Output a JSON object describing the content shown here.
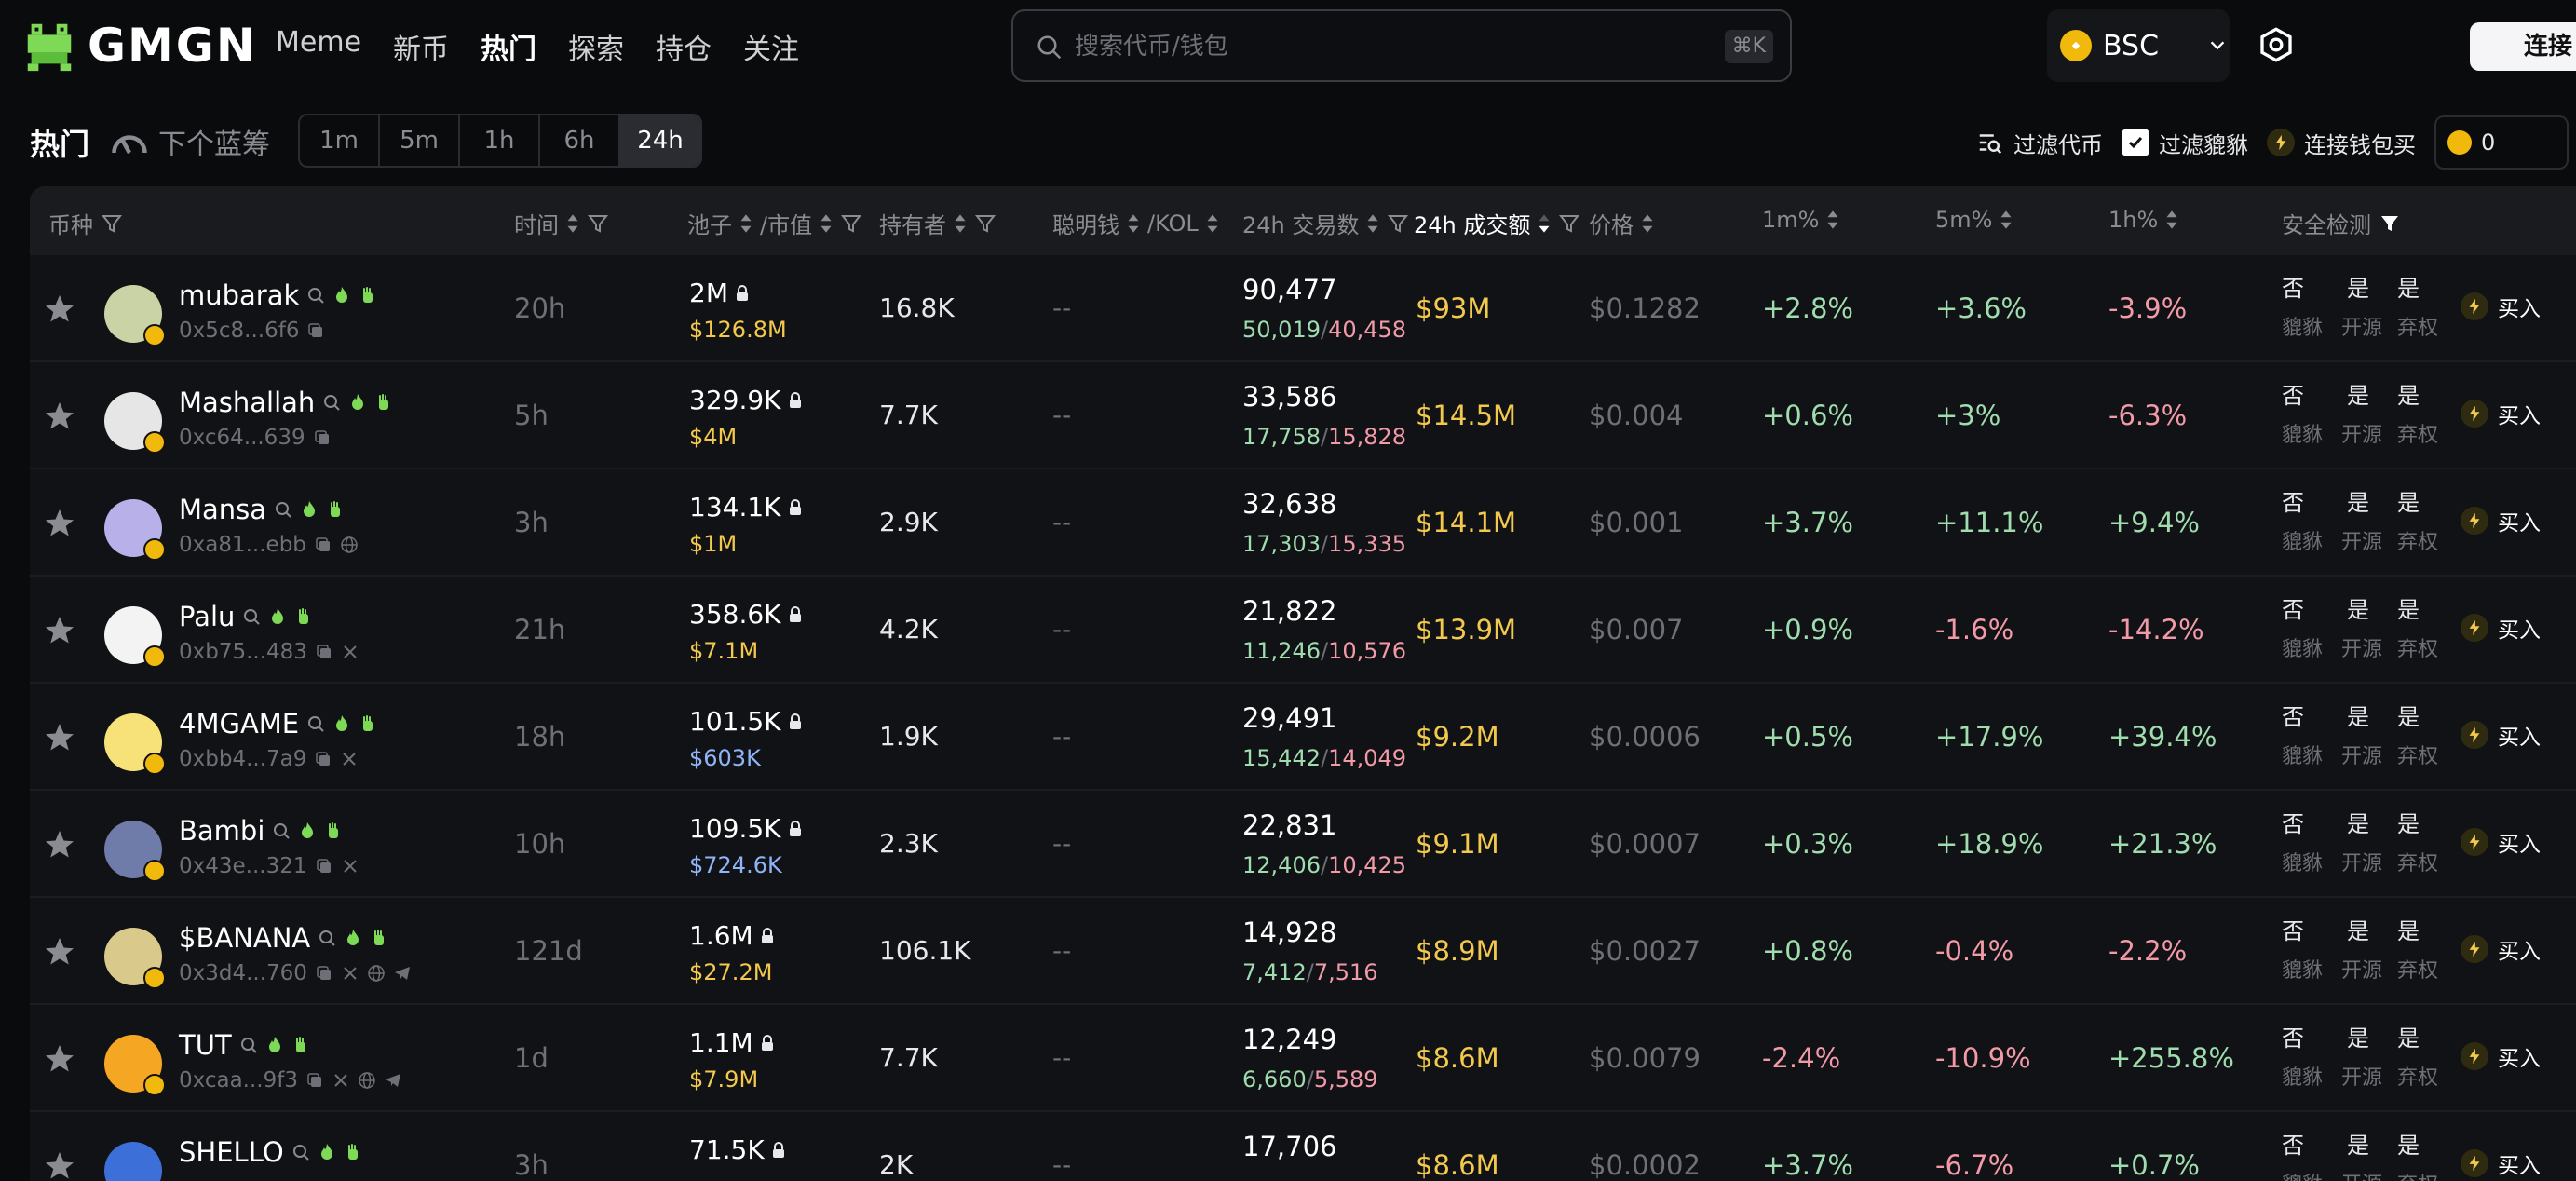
{
  "brand": {
    "name": "GMGN"
  },
  "nav": [
    "Meme",
    "新币",
    "热门",
    "探索",
    "持仓",
    "关注"
  ],
  "search": {
    "placeholder": "搜索代币/钱包",
    "shortcut": "⌘K"
  },
  "chain": {
    "label": "BSC"
  },
  "connect_label": "连接",
  "toolbar": {
    "title": "热门",
    "next_blue": "下个蓝筹",
    "periods": [
      "1m",
      "5m",
      "1h",
      "6h",
      "24h"
    ],
    "active_period": "24h",
    "filter_tokens": "过滤代币",
    "filter_pixiu": "过滤貔貅",
    "connect_buy": "连接钱包买",
    "balance": "0"
  },
  "headers": {
    "coin": "币种",
    "age": "时间",
    "pool": "池子",
    "mcap": "/市值",
    "holders": "持有者",
    "smart": "聪明钱",
    "kol": "/KOL",
    "txns": "24h 交易数",
    "volume": "24h 成交额",
    "price": "价格",
    "p1m": "1m%",
    "p5m": "5m%",
    "p1h": "1h%",
    "safety": "安全检测"
  },
  "safety_labels": {
    "pixiu": "貔貅",
    "open": "开源",
    "renounce": "弃权",
    "no": "否",
    "yes": "是"
  },
  "buy_label": "买入",
  "icons": {
    "search": "search-icon",
    "settings": "settings-icon",
    "star": "star-icon",
    "fire": "fire-icon",
    "hand": "hand-icon",
    "lock": "lock-icon",
    "copy": "copy-icon",
    "twitter": "x-icon",
    "web": "globe-icon",
    "telegram": "telegram-icon",
    "bolt": "bolt-icon"
  },
  "colors": {
    "positive": "#9fdcae",
    "negative": "#f29aa8",
    "volume": "#f2c94c",
    "accent_bnb": "#f0b90b"
  },
  "rows": [
    {
      "name": "mubarak",
      "addr": "0x5c8...6f6",
      "age": "20h",
      "liq": "2M",
      "mcap": "$126.8M",
      "mcap_blue": false,
      "holders": "16.8K",
      "smart": "--",
      "txns": "90,477",
      "buys": "50,019",
      "sells": "40,458",
      "volume": "$93M",
      "price": "$0.1282",
      "p1m": "+2.8%",
      "p5m": "+3.6%",
      "p1h": "-3.9%",
      "socials": [
        "copy"
      ],
      "avatar_color": "#c9d3a5"
    },
    {
      "name": "Mashallah",
      "addr": "0xc64...639",
      "age": "5h",
      "liq": "329.9K",
      "mcap": "$4M",
      "mcap_blue": false,
      "holders": "7.7K",
      "smart": "--",
      "txns": "33,586",
      "buys": "17,758",
      "sells": "15,828",
      "volume": "$14.5M",
      "price": "$0.004",
      "p1m": "+0.6%",
      "p5m": "+3%",
      "p1h": "-6.3%",
      "socials": [
        "copy"
      ],
      "avatar_color": "#e6e6e6"
    },
    {
      "name": "Mansa",
      "addr": "0xa81...ebb",
      "age": "3h",
      "liq": "134.1K",
      "mcap": "$1M",
      "mcap_blue": false,
      "holders": "2.9K",
      "smart": "--",
      "txns": "32,638",
      "buys": "17,303",
      "sells": "15,335",
      "volume": "$14.1M",
      "price": "$0.001",
      "p1m": "+3.7%",
      "p5m": "+11.1%",
      "p1h": "+9.4%",
      "socials": [
        "copy",
        "web"
      ],
      "avatar_color": "#b8b0e8"
    },
    {
      "name": "Palu",
      "addr": "0xb75...483",
      "age": "21h",
      "liq": "358.6K",
      "mcap": "$7.1M",
      "mcap_blue": false,
      "holders": "4.2K",
      "smart": "--",
      "txns": "21,822",
      "buys": "11,246",
      "sells": "10,576",
      "volume": "$13.9M",
      "price": "$0.007",
      "p1m": "+0.9%",
      "p5m": "-1.6%",
      "p1h": "-14.2%",
      "socials": [
        "copy",
        "twitter"
      ],
      "avatar_color": "#f3f3f3"
    },
    {
      "name": "4MGAME",
      "addr": "0xbb4...7a9",
      "age": "18h",
      "liq": "101.5K",
      "mcap": "$603K",
      "mcap_blue": true,
      "holders": "1.9K",
      "smart": "--",
      "txns": "29,491",
      "buys": "15,442",
      "sells": "14,049",
      "volume": "$9.2M",
      "price": "$0.0006",
      "p1m": "+0.5%",
      "p5m": "+17.9%",
      "p1h": "+39.4%",
      "socials": [
        "copy",
        "twitter"
      ],
      "avatar_color": "#f7e27a"
    },
    {
      "name": "Bambi",
      "addr": "0x43e...321",
      "age": "10h",
      "liq": "109.5K",
      "mcap": "$724.6K",
      "mcap_blue": true,
      "holders": "2.3K",
      "smart": "--",
      "txns": "22,831",
      "buys": "12,406",
      "sells": "10,425",
      "volume": "$9.1M",
      "price": "$0.0007",
      "p1m": "+0.3%",
      "p5m": "+18.9%",
      "p1h": "+21.3%",
      "socials": [
        "copy",
        "twitter"
      ],
      "avatar_color": "#6f7ba8"
    },
    {
      "name": "$BANANA",
      "addr": "0x3d4...760",
      "age": "121d",
      "liq": "1.6M",
      "mcap": "$27.2M",
      "mcap_blue": false,
      "holders": "106.1K",
      "smart": "--",
      "txns": "14,928",
      "buys": "7,412",
      "sells": "7,516",
      "volume": "$8.9M",
      "price": "$0.0027",
      "p1m": "+0.8%",
      "p5m": "-0.4%",
      "p1h": "-2.2%",
      "socials": [
        "copy",
        "twitter",
        "web",
        "telegram"
      ],
      "avatar_color": "#d9c98a"
    },
    {
      "name": "TUT",
      "addr": "0xcaa...9f3",
      "age": "1d",
      "liq": "1.1M",
      "mcap": "$7.9M",
      "mcap_blue": false,
      "holders": "7.7K",
      "smart": "--",
      "txns": "12,249",
      "buys": "6,660",
      "sells": "5,589",
      "volume": "$8.6M",
      "price": "$0.0079",
      "p1m": "-2.4%",
      "p5m": "-10.9%",
      "p1h": "+255.8%",
      "socials": [
        "copy",
        "twitter",
        "web",
        "telegram"
      ],
      "avatar_color": "#f5a623"
    },
    {
      "name": "SHELLO",
      "addr": "",
      "age": "3h",
      "liq": "71.5K",
      "mcap": "",
      "mcap_blue": false,
      "holders": "2K",
      "smart": "--",
      "txns": "17,706",
      "buys": "",
      "sells": "",
      "volume": "$8.6M",
      "price": "$0.0002",
      "p1m": "+3.7%",
      "p5m": "-6.7%",
      "p1h": "+0.7%",
      "socials": [],
      "avatar_color": "#3d6fd8"
    }
  ]
}
